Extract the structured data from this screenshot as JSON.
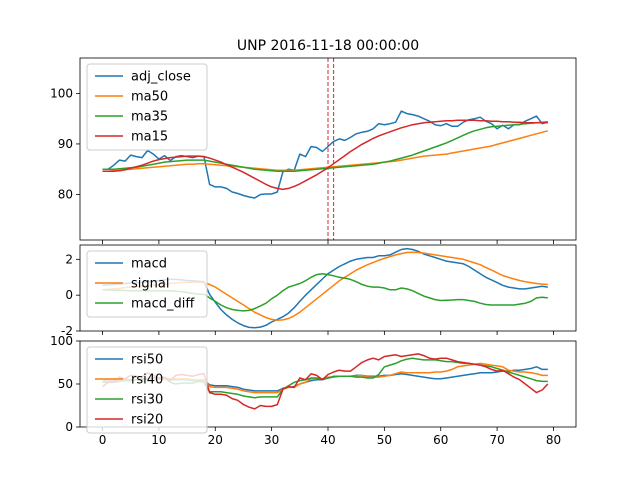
{
  "chart_data": [
    {
      "type": "line",
      "title": "UNP 2016-11-18 00:00:00",
      "xlim": [
        -4,
        84
      ],
      "ylim": [
        71,
        107
      ],
      "yticks": [
        80,
        90,
        100
      ],
      "xticks": [],
      "legend": "top-left",
      "vlines": [
        40,
        41
      ],
      "vline_color": "#d62728",
      "series": [
        {
          "name": "adj_close",
          "color": "#1f77b4",
          "values": [
            85.0,
            85.0,
            85.8,
            86.8,
            86.6,
            87.8,
            87.5,
            87.3,
            88.7,
            88.0,
            87.0,
            87.7,
            86.7,
            87.5,
            87.7,
            87.5,
            87.3,
            87.6,
            87.5,
            82.0,
            81.5,
            81.5,
            81.2,
            80.5,
            80.2,
            79.8,
            79.5,
            79.3,
            80.0,
            80.1,
            80.1,
            80.5,
            84.5,
            85.0,
            84.8,
            88.0,
            87.5,
            89.5,
            89.3,
            88.5,
            89.5,
            90.5,
            91.0,
            90.7,
            91.3,
            92.0,
            92.3,
            92.5,
            93.0,
            94.0,
            93.8,
            94.0,
            94.3,
            96.5,
            96.0,
            95.8,
            95.5,
            95.0,
            94.5,
            93.8,
            93.6,
            94.0,
            93.5,
            93.5,
            94.3,
            94.8,
            95.0,
            95.3,
            94.5,
            94.0,
            93.0,
            93.7,
            93.0,
            93.8,
            93.8,
            94.5,
            95.0,
            95.5,
            94.0,
            94.3
          ]
        },
        {
          "name": "ma50",
          "color": "#ff7f0e",
          "values": [
            84.6,
            84.6,
            84.7,
            84.8,
            84.9,
            85.0,
            85.1,
            85.2,
            85.3,
            85.4,
            85.5,
            85.6,
            85.7,
            85.8,
            85.9,
            86.0,
            86.0,
            86.1,
            86.1,
            86.0,
            85.9,
            85.8,
            85.7,
            85.6,
            85.5,
            85.4,
            85.3,
            85.2,
            85.1,
            85.0,
            84.9,
            84.8,
            84.8,
            84.8,
            84.8,
            84.9,
            85.0,
            85.1,
            85.2,
            85.3,
            85.4,
            85.5,
            85.6,
            85.7,
            85.8,
            85.9,
            86.0,
            86.1,
            86.2,
            86.3,
            86.4,
            86.5,
            86.6,
            86.8,
            87.0,
            87.2,
            87.4,
            87.6,
            87.7,
            87.8,
            87.9,
            88.0,
            88.2,
            88.4,
            88.6,
            88.8,
            89.0,
            89.2,
            89.4,
            89.6,
            89.9,
            90.2,
            90.5,
            90.8,
            91.1,
            91.4,
            91.7,
            92.0,
            92.3,
            92.6
          ]
        },
        {
          "name": "ma35",
          "color": "#2ca02c",
          "values": [
            85.0,
            85.0,
            85.0,
            85.1,
            85.2,
            85.3,
            85.4,
            85.6,
            85.8,
            86.0,
            86.2,
            86.4,
            86.5,
            86.6,
            86.7,
            86.8,
            86.8,
            86.8,
            86.8,
            86.6,
            86.4,
            86.2,
            86.0,
            85.8,
            85.6,
            85.4,
            85.2,
            85.0,
            84.9,
            84.8,
            84.7,
            84.6,
            84.6,
            84.6,
            84.6,
            84.7,
            84.8,
            84.9,
            85.0,
            85.1,
            85.2,
            85.3,
            85.4,
            85.5,
            85.6,
            85.7,
            85.8,
            85.9,
            86.0,
            86.2,
            86.4,
            86.6,
            86.9,
            87.2,
            87.5,
            87.8,
            88.2,
            88.6,
            89.0,
            89.4,
            89.8,
            90.2,
            90.7,
            91.2,
            91.7,
            92.2,
            92.6,
            92.9,
            93.2,
            93.4,
            93.5,
            93.6,
            93.7,
            93.8,
            93.9,
            94.0,
            94.1,
            94.2,
            94.3,
            94.4
          ]
        },
        {
          "name": "ma15",
          "color": "#d62728",
          "values": [
            84.6,
            84.6,
            84.6,
            84.7,
            84.9,
            85.2,
            85.5,
            85.8,
            86.2,
            86.6,
            86.9,
            87.1,
            87.3,
            87.4,
            87.5,
            87.6,
            87.6,
            87.6,
            87.5,
            87.2,
            86.8,
            86.4,
            85.9,
            85.4,
            84.9,
            84.4,
            83.8,
            83.2,
            82.6,
            82.0,
            81.5,
            81.2,
            81.0,
            81.2,
            81.6,
            82.1,
            82.7,
            83.3,
            83.9,
            84.6,
            85.3,
            86.1,
            86.9,
            87.7,
            88.5,
            89.2,
            89.9,
            90.5,
            91.1,
            91.6,
            92.0,
            92.4,
            92.8,
            93.2,
            93.5,
            93.8,
            94.0,
            94.2,
            94.3,
            94.4,
            94.5,
            94.6,
            94.6,
            94.7,
            94.7,
            94.7,
            94.7,
            94.6,
            94.6,
            94.5,
            94.5,
            94.4,
            94.4,
            94.3,
            94.3,
            94.2,
            94.2,
            94.2,
            94.2,
            94.2
          ]
        }
      ]
    },
    {
      "type": "line",
      "xlim": [
        -4,
        84
      ],
      "ylim": [
        -2,
        2.8
      ],
      "yticks": [
        -2,
        0,
        2
      ],
      "xticks": [],
      "legend": "top-left",
      "series": [
        {
          "name": "macd",
          "color": "#1f77b4",
          "values": [
            0.55,
            0.58,
            0.6,
            0.62,
            0.65,
            0.68,
            0.7,
            0.72,
            0.75,
            0.78,
            0.82,
            0.85,
            0.88,
            0.88,
            0.85,
            0.82,
            0.8,
            0.78,
            0.76,
            0.05,
            -0.4,
            -0.8,
            -1.1,
            -1.35,
            -1.55,
            -1.7,
            -1.8,
            -1.82,
            -1.78,
            -1.68,
            -1.5,
            -1.35,
            -1.2,
            -1.0,
            -0.7,
            -0.35,
            0.0,
            0.3,
            0.6,
            0.9,
            1.2,
            1.4,
            1.6,
            1.75,
            1.9,
            2.0,
            2.05,
            2.1,
            2.1,
            2.2,
            2.2,
            2.25,
            2.4,
            2.55,
            2.6,
            2.55,
            2.45,
            2.3,
            2.2,
            2.1,
            2.0,
            1.9,
            1.85,
            1.8,
            1.75,
            1.6,
            1.4,
            1.2,
            1.0,
            0.85,
            0.7,
            0.55,
            0.45,
            0.4,
            0.35,
            0.35,
            0.4,
            0.45,
            0.5,
            0.45
          ]
        },
        {
          "name": "signal",
          "color": "#ff7f0e",
          "values": [
            0.3,
            0.32,
            0.35,
            0.38,
            0.42,
            0.45,
            0.48,
            0.5,
            0.52,
            0.55,
            0.58,
            0.62,
            0.65,
            0.68,
            0.7,
            0.72,
            0.73,
            0.72,
            0.7,
            0.6,
            0.45,
            0.25,
            0.05,
            -0.15,
            -0.35,
            -0.55,
            -0.75,
            -0.95,
            -1.1,
            -1.25,
            -1.35,
            -1.4,
            -1.38,
            -1.3,
            -1.15,
            -0.95,
            -0.7,
            -0.45,
            -0.2,
            0.05,
            0.3,
            0.55,
            0.8,
            1.0,
            1.2,
            1.4,
            1.55,
            1.7,
            1.82,
            1.95,
            2.05,
            2.15,
            2.25,
            2.32,
            2.38,
            2.4,
            2.38,
            2.35,
            2.3,
            2.25,
            2.2,
            2.15,
            2.1,
            2.05,
            2.0,
            1.9,
            1.8,
            1.7,
            1.55,
            1.4,
            1.25,
            1.1,
            1.0,
            0.9,
            0.82,
            0.75,
            0.7,
            0.65,
            0.62,
            0.6
          ]
        },
        {
          "name": "macd_diff",
          "color": "#2ca02c",
          "values": [
            0.3,
            0.29,
            0.28,
            0.27,
            0.26,
            0.25,
            0.25,
            0.24,
            0.24,
            0.24,
            0.25,
            0.25,
            0.24,
            0.22,
            0.2,
            0.15,
            0.1,
            0.06,
            0.05,
            -0.15,
            -0.35,
            -0.55,
            -0.7,
            -0.8,
            -0.85,
            -0.88,
            -0.85,
            -0.75,
            -0.6,
            -0.45,
            -0.2,
            0.0,
            0.25,
            0.45,
            0.55,
            0.65,
            0.8,
            1.0,
            1.15,
            1.2,
            1.15,
            1.08,
            1.0,
            0.95,
            0.88,
            0.75,
            0.6,
            0.5,
            0.45,
            0.45,
            0.4,
            0.3,
            0.3,
            0.4,
            0.35,
            0.25,
            0.1,
            -0.05,
            -0.15,
            -0.25,
            -0.3,
            -0.28,
            -0.27,
            -0.25,
            -0.25,
            -0.3,
            -0.35,
            -0.45,
            -0.52,
            -0.55,
            -0.55,
            -0.55,
            -0.55,
            -0.55,
            -0.5,
            -0.45,
            -0.35,
            -0.15,
            -0.12,
            -0.15
          ]
        }
      ]
    },
    {
      "type": "line",
      "xlim": [
        -4,
        84
      ],
      "ylim": [
        0,
        100
      ],
      "yticks": [
        0,
        50,
        100
      ],
      "xticks": [
        0,
        10,
        20,
        30,
        40,
        50,
        60,
        70,
        80
      ],
      "legend": "top-left",
      "series": [
        {
          "name": "rsi50",
          "color": "#1f77b4",
          "values": [
            55,
            55,
            55,
            55,
            55,
            55,
            55,
            55,
            56,
            56,
            56,
            56,
            55,
            55,
            55,
            55,
            54,
            54,
            54,
            49,
            48,
            48,
            48,
            47,
            46,
            44,
            43,
            42,
            42,
            42,
            42,
            42,
            45,
            46,
            47,
            50,
            52,
            54,
            55,
            55,
            57,
            58,
            59,
            59,
            59,
            60,
            60,
            59,
            59,
            59,
            60,
            60,
            61,
            62,
            61,
            60,
            59,
            58,
            57,
            56,
            56,
            57,
            58,
            59,
            60,
            61,
            62,
            63,
            63,
            63,
            64,
            65,
            65,
            66,
            66,
            67,
            68,
            70,
            67,
            67
          ]
        },
        {
          "name": "rsi40",
          "color": "#ff7f0e",
          "values": [
            53,
            53,
            53,
            54,
            54,
            54,
            55,
            55,
            57,
            57,
            57,
            57,
            56,
            56,
            56,
            56,
            55,
            55,
            55,
            47,
            46,
            46,
            46,
            45,
            44,
            42,
            41,
            40,
            40,
            40,
            40,
            40,
            44,
            46,
            46,
            50,
            52,
            56,
            57,
            56,
            58,
            58,
            59,
            59,
            59,
            59,
            60,
            58,
            58,
            58,
            59,
            60,
            62,
            64,
            63,
            63,
            63,
            63,
            63,
            64,
            64,
            65,
            67,
            70,
            71,
            72,
            73,
            74,
            73,
            72,
            71,
            70,
            66,
            65,
            64,
            64,
            63,
            62,
            60,
            60
          ]
        },
        {
          "name": "rsi30",
          "color": "#2ca02c",
          "values": [
            52,
            52,
            52,
            53,
            54,
            54,
            55,
            56,
            56,
            57,
            57,
            57,
            52,
            50,
            51,
            51,
            51,
            53,
            52,
            41,
            41,
            41,
            40,
            39,
            38,
            36,
            35,
            34,
            35,
            35,
            35,
            35,
            44,
            48,
            52,
            54,
            55,
            57,
            57,
            55,
            57,
            59,
            59,
            59,
            59,
            58,
            58,
            57,
            57,
            61,
            70,
            72,
            74,
            77,
            79,
            80,
            79,
            78,
            78,
            78,
            77,
            76,
            76,
            75,
            74,
            74,
            73,
            72,
            71,
            70,
            68,
            66,
            64,
            62,
            60,
            58,
            56,
            54,
            53,
            53
          ]
        },
        {
          "name": "rsi20",
          "color": "#d62728",
          "values": [
            47,
            52,
            52,
            58,
            56,
            60,
            59,
            58,
            63,
            60,
            56,
            58,
            54,
            60,
            61,
            60,
            59,
            61,
            62,
            40,
            38,
            38,
            37,
            33,
            31,
            26,
            23,
            21,
            25,
            24,
            24,
            26,
            44,
            47,
            46,
            57,
            55,
            62,
            60,
            55,
            61,
            64,
            66,
            65,
            65,
            70,
            75,
            78,
            80,
            78,
            82,
            83,
            84,
            82,
            83,
            84,
            85,
            83,
            80,
            79,
            80,
            80,
            78,
            76,
            75,
            74,
            73,
            72,
            70,
            67,
            65,
            66,
            62,
            58,
            55,
            50,
            45,
            40,
            43,
            50
          ]
        }
      ]
    }
  ]
}
